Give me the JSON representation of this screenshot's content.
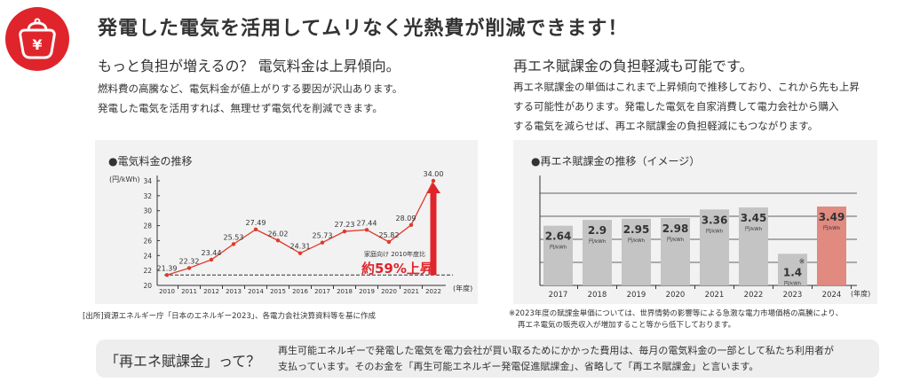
{
  "header": {
    "title": "発電した電気を活用してムリなく光熱費が削減できます！",
    "icon": "purse-yen-icon"
  },
  "left": {
    "heading": "もっと負担が増えるの？ 電気料金は上昇傾向。",
    "body": [
      "燃料費の高騰など、電気料金が値上がりする要因が沢山あります。",
      "発電した電気を活用すれば、無理せず電気代を削減できます。"
    ],
    "source": "[出所]資源エネルギー庁「日本のエネルギー2023」、各電力会社決算資料等を基に作成"
  },
  "right": {
    "heading": "再エネ賦課金の負担軽減も可能です。",
    "body": [
      "再エネ賦課金の単価はこれまで上昇傾向で推移しており、これから先も上昇",
      "する可能性があります。発電した電気を自家消費して電力会社から購入",
      "する電気を減らせば、再エネ賦課金の負担軽減にもつながります。"
    ],
    "note": [
      "※2023年度の賦課金単価については、世界情勢の影響等による急激な電力市場価格の高騰により、",
      "再エネ電気の販売収入が増加すること等から低下しております。"
    ]
  },
  "info": {
    "title": "「再エネ賦課金」って？",
    "body": [
      "再生可能エネルギーで発電した電気を電力会社が買い取るためにかかった費用は、毎月の電気料金の一部として私たち利用者が",
      "支払っています。そのお金を「再生可能エネルギー発電促進賦課金」、省略して「再エネ賦課金」と言います。"
    ]
  },
  "chart_data": [
    {
      "type": "line",
      "title": "●電気料金の推移",
      "ylabel": "(円/kWh)",
      "xlabel": "(年度)",
      "ylim": [
        20,
        34
      ],
      "yticks": [
        20,
        22,
        24,
        26,
        28,
        30,
        32,
        34
      ],
      "categories": [
        "2010",
        "2011",
        "2012",
        "2013",
        "2014",
        "2015",
        "2016",
        "2017",
        "2018",
        "2019",
        "2020",
        "2021",
        "2022"
      ],
      "values": [
        21.39,
        22.32,
        23.44,
        25.53,
        27.49,
        26.02,
        24.31,
        25.73,
        27.23,
        27.44,
        25.82,
        28.09,
        34.0
      ],
      "labels": [
        "21.39",
        "22.32",
        "23.44",
        "25.53",
        "27.49",
        "26.02",
        "24.31",
        "25.73",
        "27.23",
        "27.44",
        "25.82",
        "28.09",
        "34.00"
      ],
      "annotation": {
        "sub": "家庭向け 2010年度比",
        "main": "約59%上昇"
      },
      "color": "#e0392b",
      "accent": "#e0242b",
      "grid": false
    },
    {
      "type": "bar",
      "title": "●再エネ賦課金の推移（イメージ）",
      "xlabel": "(年度)",
      "unit": "円/kWh",
      "categories": [
        "2017",
        "2018",
        "2019",
        "2020",
        "2021",
        "2022",
        "2023",
        "2024"
      ],
      "values": [
        2.64,
        2.9,
        2.95,
        2.98,
        3.36,
        3.45,
        1.4,
        3.49
      ],
      "labels": [
        "2.64",
        "2.9",
        "2.95",
        "2.98",
        "3.36",
        "3.45",
        "1.4",
        "3.49"
      ],
      "marks": [
        "",
        "",
        "",
        "",
        "",
        "",
        "※",
        ""
      ],
      "colors": {
        "bar": "#c4c4c4",
        "highlight": "#e08a80"
      },
      "grid": true
    }
  ]
}
